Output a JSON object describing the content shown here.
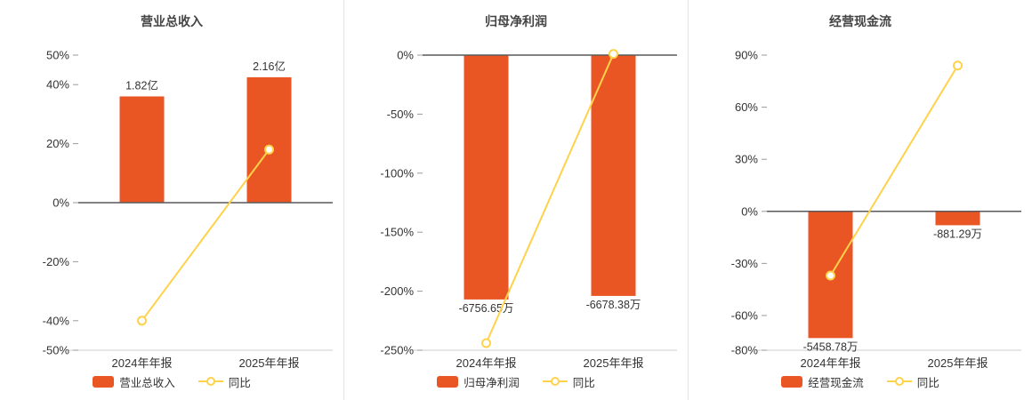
{
  "palette": {
    "bar_color": "#ea5524",
    "line_color": "#ffd24b",
    "zero_axis_color": "#595959",
    "bottom_axis_color": "#cccccc",
    "tick_color": "#999999",
    "text_color": "#333333"
  },
  "chart_data": [
    {
      "type": "bar+line",
      "title": "营业总收入",
      "categories": [
        "2024年年报",
        "2025年年报"
      ],
      "bar_series": {
        "name": "营业总收入",
        "value_labels": [
          "1.82亿",
          "2.16亿"
        ],
        "display_pct": [
          36,
          42.5
        ]
      },
      "line_series": {
        "name": "同比",
        "values_pct": [
          -40,
          18
        ]
      },
      "ylim": [
        -50,
        50
      ],
      "yticks": [
        50,
        40,
        20,
        0,
        -20,
        -40,
        -50
      ],
      "ytick_suffix": "%",
      "legend_position": "bottom",
      "grid": "off"
    },
    {
      "type": "bar+line",
      "title": "归母净利润",
      "categories": [
        "2024年年报",
        "2025年年报"
      ],
      "bar_series": {
        "name": "归母净利润",
        "value_labels": [
          "-6756.65万",
          "-6678.38万"
        ],
        "display_pct": [
          -207,
          -204
        ]
      },
      "line_series": {
        "name": "同比",
        "values_pct": [
          -244,
          1
        ]
      },
      "ylim": [
        -250,
        0
      ],
      "yticks": [
        0,
        -50,
        -100,
        -150,
        -200,
        -250
      ],
      "ytick_suffix": "%",
      "legend_position": "bottom",
      "grid": "off"
    },
    {
      "type": "bar+line",
      "title": "经营现金流",
      "categories": [
        "2024年年报",
        "2025年年报"
      ],
      "bar_series": {
        "name": "经营现金流",
        "value_labels": [
          "-5458.78万",
          "-881.29万"
        ],
        "display_pct": [
          -73,
          -8
        ]
      },
      "line_series": {
        "name": "同比",
        "values_pct": [
          -37,
          84
        ]
      },
      "ylim": [
        -80,
        90
      ],
      "yticks": [
        90,
        60,
        30,
        0,
        -30,
        -60,
        -80
      ],
      "ytick_suffix": "%",
      "legend_position": "bottom",
      "grid": "off"
    }
  ]
}
